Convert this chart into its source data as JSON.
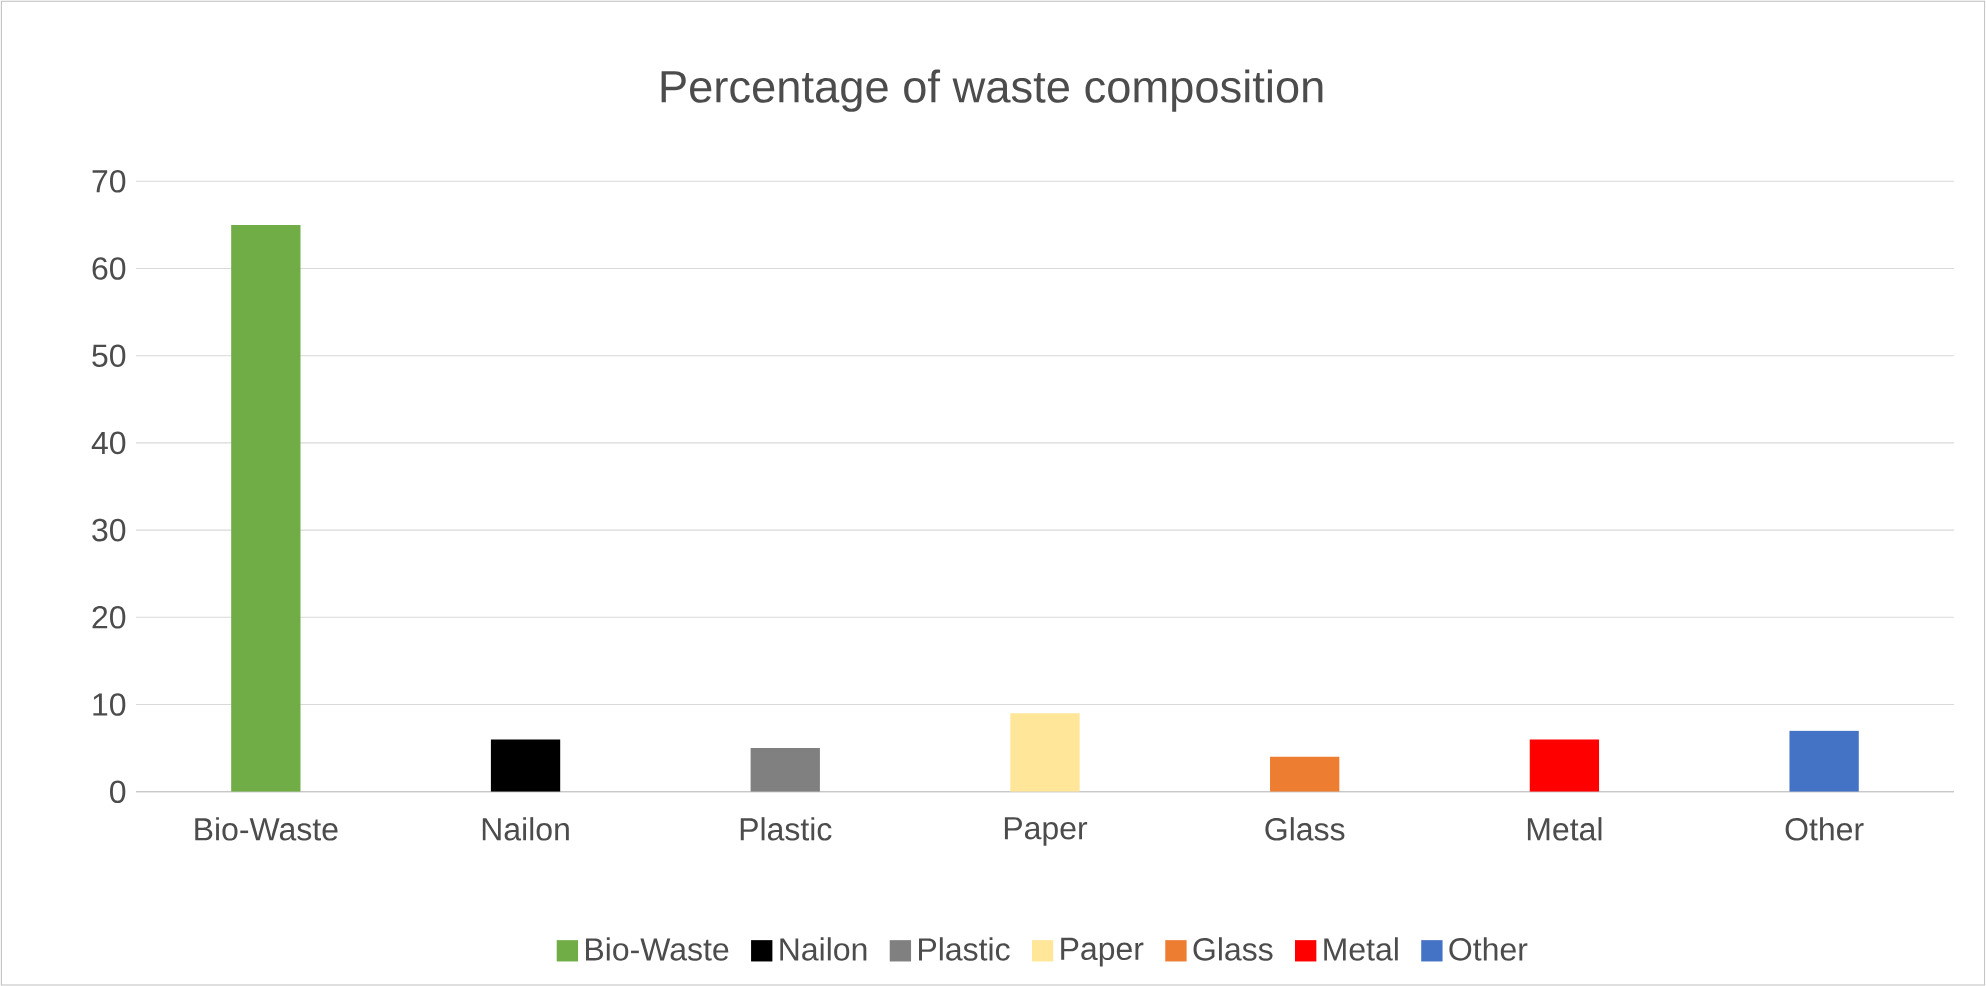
{
  "chart_data": {
    "type": "bar",
    "title": "Percentage of waste composition",
    "categories": [
      "Bio-Waste",
      "Nailon",
      "Plastic",
      "Paper",
      "Glass",
      "Metal",
      "Other"
    ],
    "series": [
      {
        "name": "Bio-Waste",
        "color": "#70ad47",
        "values": [
          65,
          null,
          null,
          null,
          null,
          null,
          null
        ]
      },
      {
        "name": "Nailon",
        "color": "#000000",
        "values": [
          null,
          6,
          null,
          null,
          null,
          null,
          null
        ]
      },
      {
        "name": "Plastic",
        "color": "#808080",
        "values": [
          null,
          null,
          5,
          null,
          null,
          null,
          null
        ]
      },
      {
        "name": "Paper",
        "color": "#ffe699",
        "values": [
          null,
          null,
          null,
          9,
          null,
          null,
          null
        ]
      },
      {
        "name": "Glass",
        "color": "#ed7d31",
        "values": [
          null,
          null,
          null,
          null,
          4,
          null,
          null
        ]
      },
      {
        "name": "Metal",
        "color": "#ff0000",
        "values": [
          null,
          null,
          null,
          null,
          null,
          6,
          null
        ]
      },
      {
        "name": "Other",
        "color": "#4472c4",
        "values": [
          null,
          null,
          null,
          null,
          null,
          null,
          7
        ]
      }
    ],
    "ylim": [
      0,
      70
    ],
    "yticks": [
      0,
      10,
      20,
      30,
      40,
      50,
      60,
      70
    ],
    "grid": "y",
    "legend": "bottom"
  }
}
